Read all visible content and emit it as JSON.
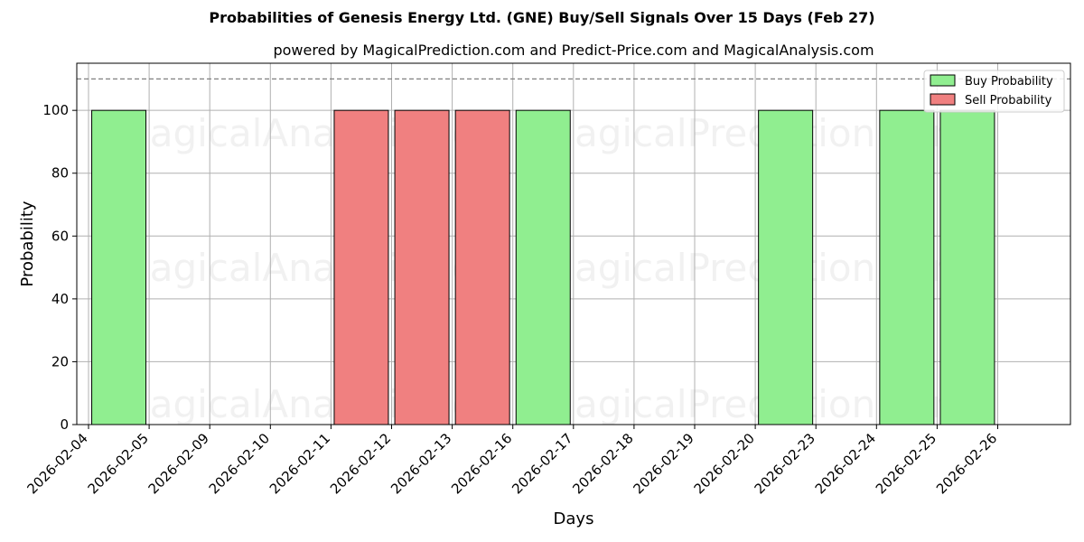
{
  "chart_data": {
    "type": "bar",
    "title": "Probabilities of Genesis Energy Ltd. (GNE) Buy/Sell Signals Over 15 Days (Feb 27)",
    "subtitle": "powered by MagicalPrediction.com and Predict-Price.com and MagicalAnalysis.com",
    "xlabel": "Days",
    "ylabel": "Probability",
    "ylim": [
      0,
      115
    ],
    "yticks": [
      0,
      20,
      40,
      60,
      80,
      100
    ],
    "reference_line": 110,
    "grid": true,
    "legend_position": "top-right",
    "categories": [
      "2026-02-04",
      "2026-02-05",
      "2026-02-09",
      "2026-02-10",
      "2026-02-11",
      "2026-02-12",
      "2026-02-13",
      "2026-02-16",
      "2026-02-17",
      "2026-02-18",
      "2026-02-19",
      "2026-02-20",
      "2026-02-23",
      "2026-02-24",
      "2026-02-25",
      "2026-02-26"
    ],
    "series": [
      {
        "name": "Buy Probability",
        "color": "#90ee90",
        "bars": [
          {
            "x": "2026-02-05",
            "value": 100
          },
          {
            "x": "2026-02-17",
            "value": 100
          },
          {
            "x": "2026-02-23",
            "value": 100
          },
          {
            "x": "2026-02-25",
            "value": 100
          },
          {
            "x": "2026-02-26",
            "value": 100
          }
        ]
      },
      {
        "name": "Sell Probability",
        "color": "#f08080",
        "bars": [
          {
            "x": "2026-02-12",
            "value": 100
          },
          {
            "x": "2026-02-13",
            "value": 100
          },
          {
            "x": "2026-02-16",
            "value": 100
          }
        ]
      }
    ],
    "watermarks": [
      "MagicalAnalysis.com",
      "MagicalPrediction.com"
    ]
  }
}
